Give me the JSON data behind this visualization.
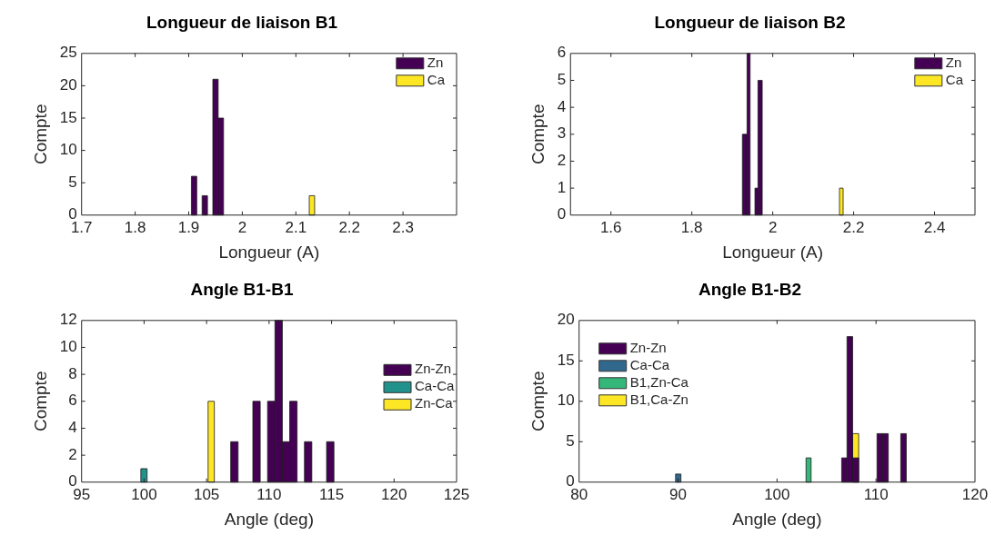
{
  "chart_data": [
    {
      "type": "histogram",
      "title": "Longueur de liaison B1",
      "xlabel": "Longueur (A)",
      "ylabel": "Compte",
      "xlim": [
        1.7,
        2.4
      ],
      "xticks": [
        1.7,
        1.8,
        1.9,
        2,
        2.1,
        2.2,
        2.3
      ],
      "ylim": [
        0,
        25
      ],
      "yticks": [
        0,
        5,
        10,
        15,
        20,
        25
      ],
      "legend": "top right",
      "bins": [
        1.905,
        1.915,
        1.925,
        1.935,
        1.945,
        1.955,
        1.965,
        1.975,
        1.985,
        1.995,
        2.005,
        2.015,
        2.025,
        2.035,
        2.045,
        2.055,
        2.065,
        2.075,
        2.085,
        2.095,
        2.105,
        2.115,
        2.125,
        2.135
      ],
      "series": [
        {
          "name": "Zn",
          "color": "#440154",
          "values": [
            6,
            0,
            3,
            0,
            21,
            15,
            0,
            0,
            0,
            0,
            0,
            0,
            0,
            0,
            0,
            0,
            0,
            0,
            0,
            0,
            0,
            0,
            0
          ]
        },
        {
          "name": "Ca",
          "color": "#fde725",
          "values": [
            0,
            0,
            0,
            0,
            0,
            0,
            0,
            0,
            0,
            0,
            0,
            0,
            0,
            0,
            0,
            0,
            0,
            0,
            0,
            0,
            0,
            0,
            3
          ]
        }
      ]
    },
    {
      "type": "histogram",
      "title": "Longueur de liaison B2",
      "xlabel": "Longueur (A)",
      "ylabel": "Compte",
      "xlim": [
        1.5,
        2.5
      ],
      "xticks": [
        1.6,
        1.8,
        2,
        2.2,
        2.4
      ],
      "ylim": [
        0,
        6
      ],
      "yticks": [
        0,
        1,
        2,
        3,
        4,
        5,
        6
      ],
      "legend": "top right",
      "bins": [
        1.925,
        1.9365,
        1.944,
        1.956,
        1.9635,
        1.974,
        2.165,
        2.174
      ],
      "series": [
        {
          "name": "Zn",
          "color": "#440154",
          "values": [
            3,
            6,
            0,
            1,
            5,
            0,
            0
          ]
        },
        {
          "name": "Ca",
          "color": "#fde725",
          "values": [
            0,
            0,
            0,
            0,
            0,
            0,
            1
          ]
        }
      ]
    },
    {
      "type": "histogram",
      "title": "Angle B1-B1",
      "xlabel": "Angle (deg)",
      "ylabel": "Compte",
      "xlim": [
        95,
        125
      ],
      "xticks": [
        95,
        100,
        105,
        110,
        115,
        120,
        125
      ],
      "ylim": [
        0,
        12
      ],
      "yticks": [
        0,
        2,
        4,
        6,
        8,
        10,
        12
      ],
      "legend": "right",
      "bins": [
        99.74,
        100.24,
        105.12,
        105.62,
        106.93,
        107.52,
        108.7,
        109.29,
        109.88,
        110.47,
        111.06,
        111.65,
        112.24,
        112.83,
        113.42,
        114.6,
        115.19
      ],
      "series": [
        {
          "name": "Zn-Zn",
          "color": "#440154",
          "values": [
            0,
            0,
            0,
            0,
            3,
            0,
            6,
            0,
            6,
            12,
            3,
            6,
            0,
            3,
            0,
            3
          ]
        },
        {
          "name": "Ca-Ca",
          "color": "#21918c",
          "values": [
            1,
            0,
            0,
            0,
            0,
            0,
            0,
            0,
            0,
            0,
            0,
            0,
            0,
            0,
            0,
            0
          ]
        },
        {
          "name": "Zn-Ca",
          "color": "#fde725",
          "values": [
            0,
            0,
            6,
            0,
            0,
            0,
            0,
            0,
            0,
            0,
            0,
            0,
            0,
            0,
            0,
            0
          ]
        }
      ]
    },
    {
      "type": "histogram",
      "title": "Angle B1-B2",
      "xlabel": "Angle (deg)",
      "ylabel": "Compte",
      "xlim": [
        80,
        120
      ],
      "xticks": [
        80,
        90,
        100,
        110,
        120
      ],
      "ylim": [
        0,
        20
      ],
      "yticks": [
        0,
        5,
        10,
        15,
        20
      ],
      "legend": "left",
      "bins": [
        89.75,
        90.29,
        102.93,
        103.44,
        106.53,
        107.07,
        107.64,
        108.25,
        110.1,
        110.67,
        111.24,
        112.5,
        113.06
      ],
      "series": [
        {
          "name": "Zn-Zn",
          "color": "#440154",
          "values": [
            0,
            0,
            0,
            0,
            3,
            18,
            3,
            0,
            6,
            6,
            0,
            6
          ]
        },
        {
          "name": "Ca-Ca",
          "color": "#31688e",
          "values": [
            1,
            0,
            0,
            0,
            0,
            0,
            0,
            0,
            0,
            0,
            0,
            0
          ]
        },
        {
          "name": "B1,Zn-Ca",
          "color": "#35b779",
          "values": [
            0,
            0,
            3,
            0,
            0,
            0,
            0,
            0,
            0,
            0,
            0,
            0
          ]
        },
        {
          "name": "B1,Ca-Zn",
          "color": "#fde725",
          "values": [
            0,
            0,
            0,
            0,
            0,
            0,
            6,
            0,
            0,
            0,
            0,
            0
          ]
        }
      ]
    }
  ]
}
